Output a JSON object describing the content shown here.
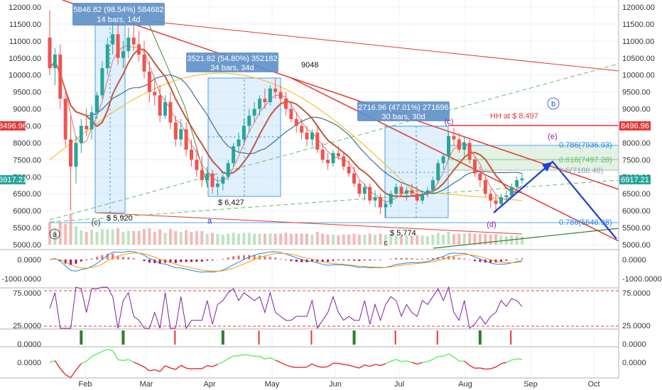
{
  "chart_data": {
    "type": "candlestick",
    "panels": [
      {
        "name": "price",
        "type": "candlestick",
        "ylim": [
          4900,
          12100
        ]
      },
      {
        "name": "macd",
        "type": "line",
        "ylim": [
          -1400,
          450
        ]
      },
      {
        "name": "rsi",
        "type": "line",
        "ylim": [
          17,
          85
        ]
      },
      {
        "name": "signals",
        "type": "bar"
      },
      {
        "name": "oscillator",
        "type": "line"
      }
    ],
    "x_ticks": [
      "Feb",
      "Mar",
      "Apr",
      "May",
      "Jun",
      "Jul",
      "Aug",
      "Sep",
      "Oct"
    ],
    "price_axis": {
      "ticks": [
        "12000.00",
        "11500.00",
        "11000.00",
        "10500.00",
        "10000.00",
        "9500.00",
        "9000.00",
        "8500.00",
        "8000.00",
        "7500.00",
        "7000.00",
        "6500.00",
        "6000.00",
        "5500.00",
        "5000.00"
      ],
      "tick_values": [
        12000,
        11500,
        11000,
        10500,
        10000,
        9500,
        9000,
        8500,
        8000,
        7500,
        7000,
        6500,
        6000,
        5500,
        5000
      ]
    },
    "macd_axis": {
      "left_ticks": [
        "0.0000",
        "-1000.0000"
      ],
      "right_ticks": [
        "0.0000",
        "-1000.0000"
      ],
      "values": [
        0,
        -1000
      ]
    },
    "rsi_axis": {
      "left_ticks": [
        "75.0000",
        "25.0000"
      ],
      "right_ticks": [
        "75.0000",
        "25.0000"
      ],
      "values": [
        75,
        25
      ]
    },
    "signal_axis": {
      "left_ticks": [
        "0.0000"
      ],
      "right_ticks": [
        "0.0000"
      ]
    },
    "osc_axis": {
      "left_ticks": [
        "0.0000"
      ],
      "right_ticks": [
        "0.0000"
      ]
    },
    "price_labels": [
      {
        "text": "8496.96",
        "value": 8496.96,
        "color": "#e53935"
      },
      {
        "text": "6917.21",
        "value": 6917.21,
        "color": "#26a69a"
      }
    ],
    "measure_boxes": [
      {
        "line1": "5846.82 (98.54%) 584682",
        "line2": "14 bars, 14d"
      },
      {
        "line1": "3521.82 (54.80%) 352182",
        "line2": "34 bars, 34d"
      },
      {
        "line1": "2716.96 (47.01%) 271696",
        "line2": "30 bars, 30d"
      }
    ],
    "annotations": [
      {
        "text": "HH at $ 8.497",
        "color": "#e53935"
      },
      {
        "text": "$ 5,920"
      },
      {
        "text": "$ 6,427"
      },
      {
        "text": "$ 5,774"
      },
      {
        "text": "9048"
      }
    ],
    "wave_labels": [
      "a",
      "(c)",
      "a",
      "c",
      "(d)",
      "(e)",
      "b",
      "(c)"
    ],
    "fib_levels": [
      {
        "text": "0.786(7936.93)",
        "value": 7936.93
      },
      {
        "text": "0.618(7497.28)",
        "value": 7497.28
      },
      {
        "text": "0.5(7188.48)",
        "value": 7188.48
      },
      {
        "text": "0.786(5646.98)",
        "value": 5646.98
      }
    ],
    "candles": [
      [
        11100,
        11900,
        10000,
        10200
      ],
      [
        10200,
        10800,
        9700,
        10600
      ],
      [
        10600,
        10900,
        9000,
        9300
      ],
      [
        9300,
        9600,
        7900,
        8100
      ],
      [
        8100,
        8800,
        6000,
        7300
      ],
      [
        7300,
        8200,
        6800,
        8000
      ],
      [
        8000,
        8700,
        7700,
        8500
      ],
      [
        8500,
        9000,
        8200,
        8400
      ],
      [
        8400,
        9100,
        8100,
        8900
      ],
      [
        8900,
        9500,
        8700,
        9400
      ],
      [
        9400,
        10400,
        9300,
        10200
      ],
      [
        10200,
        11100,
        10000,
        10900
      ],
      [
        10900,
        11700,
        10600,
        11200
      ],
      [
        11200,
        11500,
        10300,
        10500
      ],
      [
        10500,
        11000,
        10200,
        10700
      ],
      [
        10700,
        11400,
        10500,
        11100
      ],
      [
        11100,
        11600,
        10700,
        10900
      ],
      [
        10900,
        11300,
        10400,
        10600
      ],
      [
        10600,
        11000,
        9900,
        10100
      ],
      [
        10100,
        10400,
        9200,
        9500
      ],
      [
        9500,
        9900,
        9100,
        9400
      ],
      [
        9400,
        9700,
        8600,
        8800
      ],
      [
        8800,
        9400,
        8700,
        9200
      ],
      [
        9200,
        9500,
        8400,
        8600
      ],
      [
        8600,
        8800,
        7900,
        8100
      ],
      [
        8100,
        8700,
        7900,
        8400
      ],
      [
        8400,
        8600,
        7600,
        7800
      ],
      [
        7800,
        8100,
        7300,
        7500
      ],
      [
        7500,
        7900,
        7000,
        7200
      ],
      [
        7200,
        7600,
        6700,
        6900
      ],
      [
        6900,
        7300,
        6700,
        7100
      ],
      [
        7100,
        7200,
        6500,
        6700
      ],
      [
        6700,
        7000,
        6450,
        6800
      ],
      [
        6800,
        7100,
        6600,
        7000
      ],
      [
        7000,
        7500,
        6900,
        7400
      ],
      [
        7400,
        8000,
        7300,
        7900
      ],
      [
        7900,
        8300,
        7700,
        8100
      ],
      [
        8100,
        8700,
        8000,
        8500
      ],
      [
        8500,
        9000,
        8300,
        8800
      ],
      [
        8800,
        9200,
        8600,
        9000
      ],
      [
        9000,
        9400,
        8800,
        9300
      ],
      [
        9300,
        9600,
        9000,
        9200
      ],
      [
        9200,
        9700,
        9100,
        9600
      ],
      [
        9600,
        9900,
        9300,
        9500
      ],
      [
        9500,
        9700,
        9100,
        9300
      ],
      [
        9300,
        9500,
        8800,
        9000
      ],
      [
        9000,
        9200,
        8600,
        8700
      ],
      [
        8700,
        8900,
        8300,
        8500
      ],
      [
        8500,
        8700,
        8100,
        8300
      ],
      [
        8300,
        8500,
        7900,
        8100
      ],
      [
        8100,
        8400,
        7900,
        8300
      ],
      [
        8300,
        8500,
        7700,
        7800
      ],
      [
        7800,
        8000,
        7400,
        7500
      ],
      [
        7500,
        7700,
        7200,
        7400
      ],
      [
        7400,
        7800,
        7300,
        7700
      ],
      [
        7700,
        7900,
        7500,
        7600
      ],
      [
        7600,
        7700,
        7200,
        7300
      ],
      [
        7300,
        7500,
        7000,
        7100
      ],
      [
        7100,
        7300,
        6700,
        6800
      ],
      [
        6800,
        6900,
        6400,
        6500
      ],
      [
        6500,
        6800,
        6300,
        6700
      ],
      [
        6700,
        6800,
        6200,
        6300
      ],
      [
        6300,
        6600,
        6100,
        6400
      ],
      [
        6400,
        6500,
        5900,
        6100
      ],
      [
        6100,
        6300,
        5800,
        6200
      ],
      [
        6200,
        6600,
        6100,
        6500
      ],
      [
        6500,
        6800,
        6400,
        6700
      ],
      [
        6700,
        6800,
        6400,
        6500
      ],
      [
        6500,
        6700,
        6300,
        6600
      ],
      [
        6600,
        6800,
        6400,
        6500
      ],
      [
        6500,
        6700,
        6250,
        6300
      ],
      [
        6300,
        6600,
        6200,
        6500
      ],
      [
        6500,
        6700,
        6400,
        6600
      ],
      [
        6600,
        7000,
        6500,
        6900
      ],
      [
        6900,
        7500,
        6800,
        7400
      ],
      [
        7400,
        7700,
        7200,
        7600
      ],
      [
        7600,
        8300,
        7500,
        8200
      ],
      [
        8200,
        8450,
        7900,
        8100
      ],
      [
        8100,
        8300,
        7700,
        7800
      ],
      [
        7800,
        8200,
        7600,
        8000
      ],
      [
        8000,
        8100,
        7400,
        7500
      ],
      [
        7500,
        7600,
        7000,
        7100
      ],
      [
        7100,
        7300,
        6700,
        6900
      ],
      [
        6900,
        7000,
        6400,
        6500
      ],
      [
        6500,
        6600,
        6100,
        6300
      ],
      [
        6300,
        6500,
        5950,
        6200
      ],
      [
        6200,
        6500,
        6100,
        6400
      ],
      [
        6400,
        6600,
        6300,
        6450
      ],
      [
        6450,
        6800,
        6400,
        6700
      ],
      [
        6700,
        7000,
        6600,
        6900
      ],
      [
        6900,
        7100,
        6800,
        6950
      ]
    ]
  }
}
